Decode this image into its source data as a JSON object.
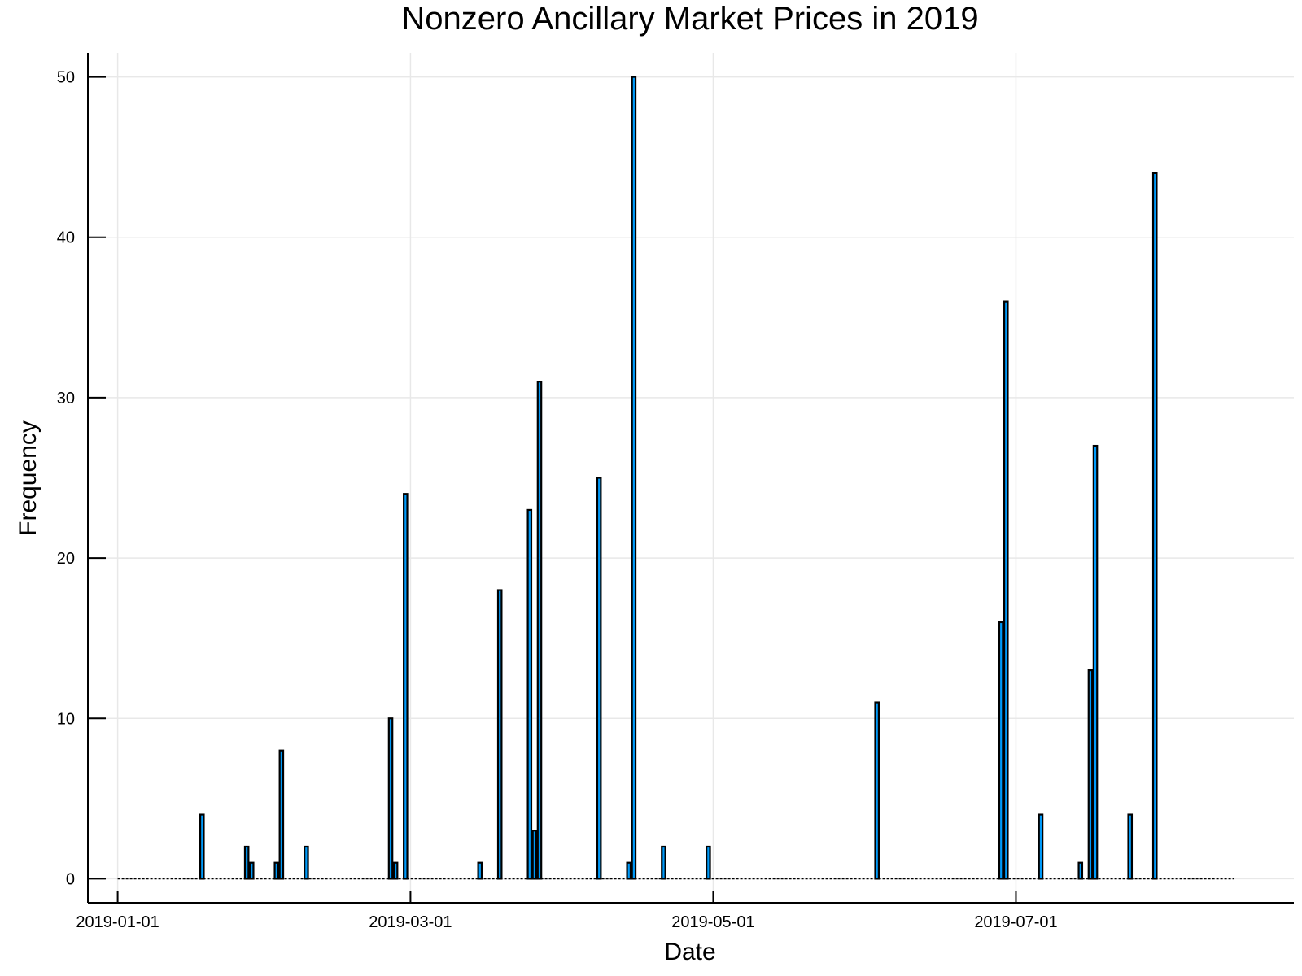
{
  "chart_data": {
    "type": "bar",
    "title": "Nonzero Ancillary Market Prices in 2019",
    "xlabel": "Date",
    "ylabel": "Frequency",
    "x_type": "date",
    "xlim": [
      "2018-12-26",
      "2019-08-26"
    ],
    "ylim": [
      -1.5,
      51.5
    ],
    "xticks": [
      "2019-01-01",
      "2019-03-01",
      "2019-05-01",
      "2019-07-01"
    ],
    "yticks": [
      0,
      10,
      20,
      30,
      40,
      50
    ],
    "baseline_range": [
      "2019-01-01",
      "2019-08-14"
    ],
    "grid": true,
    "legend": "none",
    "bar_color": "#009af9",
    "points": [
      {
        "date": "2019-01-18",
        "value": 4
      },
      {
        "date": "2019-01-27",
        "value": 2
      },
      {
        "date": "2019-01-28",
        "value": 1
      },
      {
        "date": "2019-02-02",
        "value": 1
      },
      {
        "date": "2019-02-03",
        "value": 8
      },
      {
        "date": "2019-02-08",
        "value": 2
      },
      {
        "date": "2019-02-25",
        "value": 10
      },
      {
        "date": "2019-02-26",
        "value": 1
      },
      {
        "date": "2019-02-28",
        "value": 24
      },
      {
        "date": "2019-03-15",
        "value": 1
      },
      {
        "date": "2019-03-19",
        "value": 18
      },
      {
        "date": "2019-03-25",
        "value": 23
      },
      {
        "date": "2019-03-26",
        "value": 3
      },
      {
        "date": "2019-03-27",
        "value": 31
      },
      {
        "date": "2019-04-08",
        "value": 25
      },
      {
        "date": "2019-04-14",
        "value": 1
      },
      {
        "date": "2019-04-15",
        "value": 50
      },
      {
        "date": "2019-04-21",
        "value": 2
      },
      {
        "date": "2019-04-30",
        "value": 2
      },
      {
        "date": "2019-06-03",
        "value": 11
      },
      {
        "date": "2019-06-28",
        "value": 16
      },
      {
        "date": "2019-06-29",
        "value": 36
      },
      {
        "date": "2019-07-06",
        "value": 4
      },
      {
        "date": "2019-07-14",
        "value": 1
      },
      {
        "date": "2019-07-16",
        "value": 13
      },
      {
        "date": "2019-07-17",
        "value": 27
      },
      {
        "date": "2019-07-24",
        "value": 4
      },
      {
        "date": "2019-07-29",
        "value": 44
      }
    ]
  }
}
